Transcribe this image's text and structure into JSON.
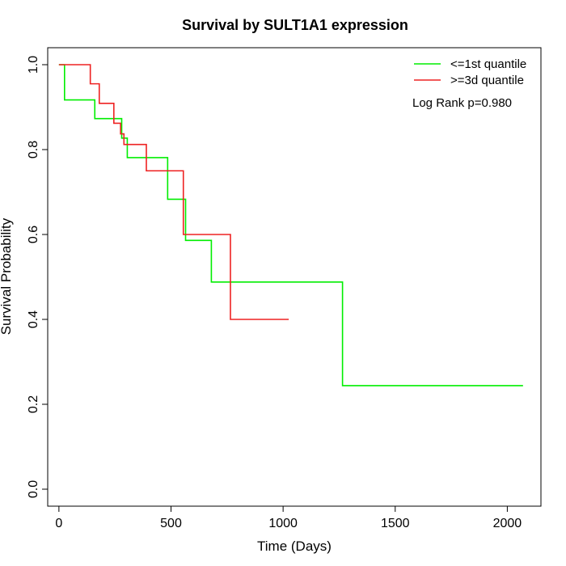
{
  "chart_data": {
    "type": "line",
    "title": "Survival by SULT1A1 expression",
    "xlabel": "Time (Days)",
    "ylabel": "Survival Probability",
    "xlim": [
      -50,
      2150
    ],
    "ylim": [
      -0.04,
      1.04
    ],
    "x_ticks": [
      0,
      500,
      1000,
      1500,
      2000
    ],
    "y_ticks": [
      0.0,
      0.2,
      0.4,
      0.6,
      0.8,
      1.0
    ],
    "x_tick_labels": [
      "0",
      "500",
      "1000",
      "1500",
      "2000"
    ],
    "y_tick_labels": [
      "0.0",
      "0.2",
      "0.4",
      "0.6",
      "0.8",
      "1.0"
    ],
    "grid": false,
    "legend_position": "top-right",
    "annotation": "Log Rank p=0.980",
    "series": [
      {
        "name": "<=1st quantile",
        "color": "#00ee00",
        "step_x": [
          0,
          25,
          160,
          280,
          305,
          485,
          565,
          680,
          1265,
          2070
        ],
        "step_y": [
          1.0,
          0.917,
          0.873,
          0.827,
          0.781,
          0.683,
          0.586,
          0.488,
          0.244,
          0.244
        ]
      },
      {
        "name": ">=3d quantile",
        "color": "#ee2222",
        "step_x": [
          0,
          140,
          180,
          245,
          275,
          290,
          390,
          555,
          765,
          1025
        ],
        "step_y": [
          1.0,
          0.955,
          0.909,
          0.862,
          0.837,
          0.812,
          0.75,
          0.6,
          0.4,
          0.4
        ]
      }
    ]
  }
}
